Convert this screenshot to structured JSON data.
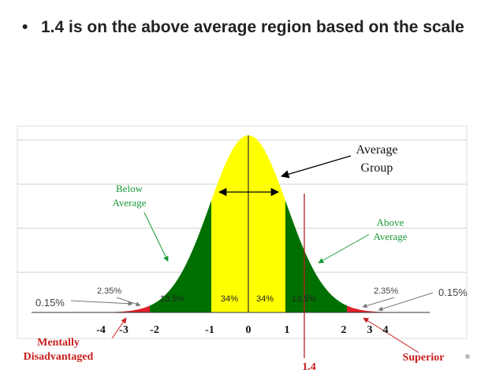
{
  "slide": {
    "bullet_symbol": "•",
    "bullet_text": "1.4  is on the above average region based on the scale"
  },
  "diagram": {
    "colors": {
      "middle_band": "#ffff00",
      "side_bands": "#007000",
      "tails": "#e0202a",
      "label_green": "#1a9a3a",
      "label_red": "#c81e1e",
      "marker_line": "#b22222"
    },
    "x_axis_ticks": [
      "-4",
      "-3",
      "-2",
      "-1",
      "0",
      "1",
      "2",
      "3",
      "4"
    ],
    "percent_labels": {
      "outer_left": "0.15%",
      "tail_left": "2.35%",
      "band_left": "13.5%",
      "center_left": "34%",
      "center_right": "34%",
      "band_right": "13.5%",
      "tail_right": "2.35%",
      "outer_right": "0.15%"
    },
    "annotations": {
      "average_group_line1": "Average",
      "average_group_line2": "Group",
      "below_average_line1": "Below",
      "below_average_line2": "Average",
      "above_average_line1": "Above",
      "above_average_line2": "Average",
      "mentally_line1": "Mentally",
      "mentally_line2": "Disadvantaged",
      "superior": "Superior",
      "marker_value": "1.4"
    }
  }
}
